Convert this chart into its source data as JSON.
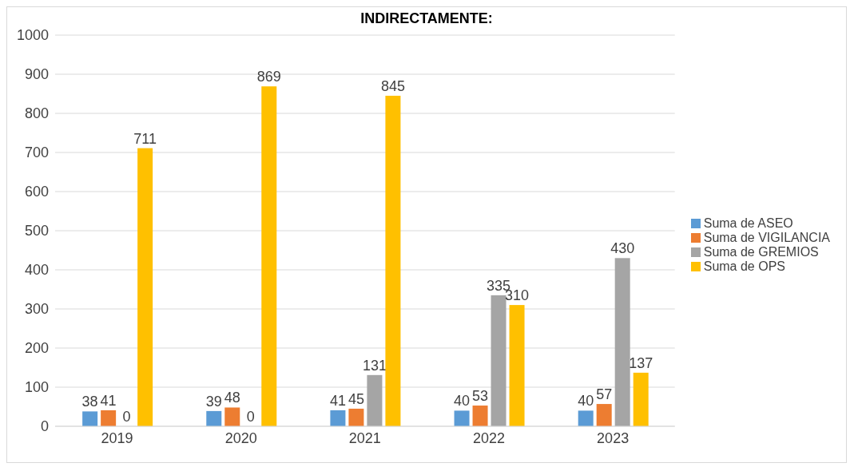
{
  "chart_data": {
    "type": "bar",
    "title": "INDIRECTAMENTE:",
    "categories": [
      "2019",
      "2020",
      "2021",
      "2022",
      "2023"
    ],
    "series": [
      {
        "name": "Suma de ASEO",
        "color": "#5b9bd5",
        "values": [
          38,
          39,
          41,
          40,
          40
        ]
      },
      {
        "name": "Suma de VIGILANCIA",
        "color": "#ed7d31",
        "values": [
          41,
          48,
          45,
          53,
          57
        ]
      },
      {
        "name": "Suma de GREMIOS",
        "color": "#a5a5a5",
        "values": [
          0,
          0,
          131,
          335,
          430
        ]
      },
      {
        "name": "Suma de OPS",
        "color": "#ffc000",
        "values": [
          711,
          869,
          845,
          310,
          137
        ]
      }
    ],
    "ylim": [
      0,
      1000
    ],
    "yticks": [
      0,
      100,
      200,
      300,
      400,
      500,
      600,
      700,
      800,
      900,
      1000
    ],
    "grid": "y",
    "legend": "right",
    "data_labels": true
  }
}
